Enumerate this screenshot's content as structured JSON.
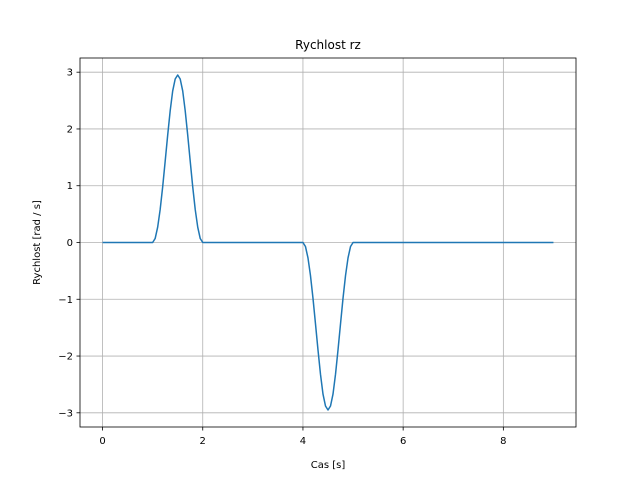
{
  "chart_data": {
    "type": "line",
    "title": "Rychlost rz",
    "xlabel": "Cas [s]",
    "ylabel": "Rychlost [rad / s]",
    "xlim": [
      -0.45,
      9.45
    ],
    "ylim": [
      -3.25,
      3.25
    ],
    "grid": true,
    "x_ticks": [
      0,
      2,
      4,
      6,
      8
    ],
    "x_tick_labels": [
      "0",
      "2",
      "4",
      "6",
      "8"
    ],
    "y_ticks": [
      -3,
      -2,
      -1,
      0,
      1,
      2,
      3
    ],
    "y_tick_labels": [
      "−3",
      "−2",
      "−1",
      "0",
      "1",
      "2",
      "3"
    ],
    "series": [
      {
        "color": "#1f77b4",
        "x": [
          0,
          1.0,
          1.05,
          1.1,
          1.15,
          1.2,
          1.25,
          1.3,
          1.35,
          1.4,
          1.45,
          1.5,
          1.55,
          1.6,
          1.65,
          1.7,
          1.75,
          1.8,
          1.85,
          1.9,
          1.95,
          2.0,
          4.0,
          4.05,
          4.1,
          4.15,
          4.2,
          4.25,
          4.3,
          4.35,
          4.4,
          4.45,
          4.5,
          4.55,
          4.6,
          4.65,
          4.7,
          4.75,
          4.8,
          4.85,
          4.9,
          4.95,
          5.0,
          9.0
        ],
        "y": [
          0,
          0,
          0.07,
          0.27,
          0.58,
          0.98,
          1.43,
          1.89,
          2.32,
          2.67,
          2.88,
          2.95,
          2.88,
          2.67,
          2.32,
          1.89,
          1.43,
          0.98,
          0.58,
          0.27,
          0.07,
          0,
          0,
          -0.07,
          -0.27,
          -0.58,
          -0.98,
          -1.43,
          -1.89,
          -2.32,
          -2.67,
          -2.88,
          -2.95,
          -2.88,
          -2.67,
          -2.32,
          -1.89,
          -1.43,
          -0.98,
          -0.58,
          -0.27,
          -0.07,
          0,
          0
        ]
      }
    ]
  }
}
